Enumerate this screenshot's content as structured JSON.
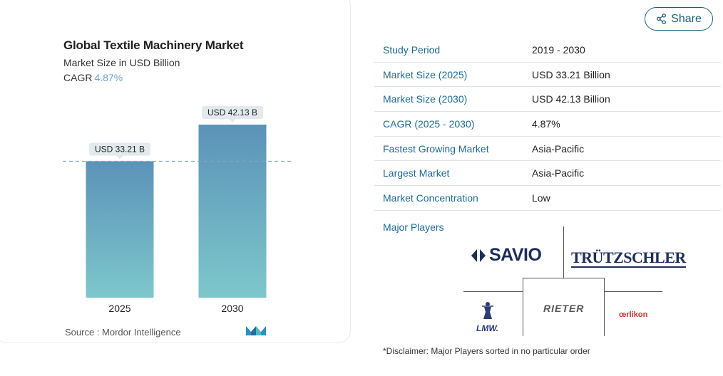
{
  "chart_data": {
    "type": "bar",
    "title": "Global Textile Machinery Market",
    "subtitle": "Market Size in USD Billion",
    "cagr_label": "CAGR",
    "cagr_value": "4.87%",
    "categories": [
      "2025",
      "2030"
    ],
    "values": [
      33.21,
      42.13
    ],
    "data_labels": [
      "USD 33.21 B",
      "USD 42.13 B"
    ],
    "ylim": [
      0,
      42.13
    ],
    "grid": false,
    "reference_line": 33.21,
    "colors": {
      "bar_top": "#5b93b8",
      "bar_bottom": "#7ec7cc",
      "label_bg": "#e3eaee",
      "ref_line": "#7aa6c2"
    }
  },
  "source": {
    "label": "Source :",
    "name": "Mordor Intelligence",
    "logo_icon": "mordor-intelligence-logo-icon"
  },
  "share": {
    "label": "Share",
    "icon": "share-icon"
  },
  "study_table": {
    "rows": [
      {
        "key": "Study Period",
        "value": "2019 - 2030"
      },
      {
        "key": "Market Size (2025)",
        "value": "USD 33.21 Billion"
      },
      {
        "key": "Market Size (2030)",
        "value": "USD 42.13 Billion"
      },
      {
        "key": "CAGR (2025 - 2030)",
        "value": "4.87%"
      },
      {
        "key": "Fastest Growing Market",
        "value": "Asia-Pacific"
      },
      {
        "key": "Largest Market",
        "value": "Asia-Pacific"
      },
      {
        "key": "Market Concentration",
        "value": "Low"
      }
    ]
  },
  "major_players": {
    "label": "Major Players",
    "logos": {
      "savio": "SAVIO",
      "trutzschler": "TRÜTZSCHLER",
      "lmw": "LMW.",
      "rieter": "RIETER",
      "oerlikon": "œrlikon"
    }
  },
  "disclaimer": "*Disclaimer: Major Players sorted in no particular order"
}
